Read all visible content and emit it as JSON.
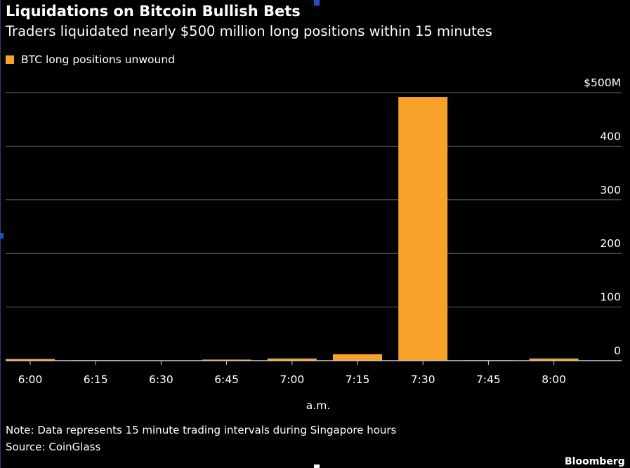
{
  "title": "Liquidations on Bitcoin Bullish Bets",
  "subtitle": "Traders liquidated nearly $500 million long positions within 15 minutes",
  "legend_label": "BTC long positions unwound",
  "note": "Note: Data represents 15 minute trading intervals during Singapore hours",
  "source": "Source: CoinGlass",
  "brand": "Bloomberg",
  "colors": {
    "background": "#000000",
    "bar": "#f8a22a",
    "grid": "#666666",
    "axis": "#cccccc",
    "text": "#ffffff"
  },
  "chart_data": {
    "type": "bar",
    "categories": [
      "6:00",
      "6:15",
      "6:30",
      "6:45",
      "7:00",
      "7:15",
      "7:30",
      "7:45",
      "8:00"
    ],
    "series": [
      {
        "name": "BTC long positions unwound",
        "values": [
          3,
          1,
          0.5,
          2,
          4,
          12,
          492,
          1,
          4
        ]
      }
    ],
    "xlabel": "a.m.",
    "ylabel": "",
    "ylim": [
      0,
      500
    ],
    "y_ticks": [
      0,
      100,
      200,
      300,
      400,
      500
    ],
    "y_tick_labels": [
      "0",
      "100",
      "200",
      "300",
      "400",
      "$500M"
    ],
    "y_axis_side": "right",
    "grid": true,
    "legend_position": "top-left"
  }
}
